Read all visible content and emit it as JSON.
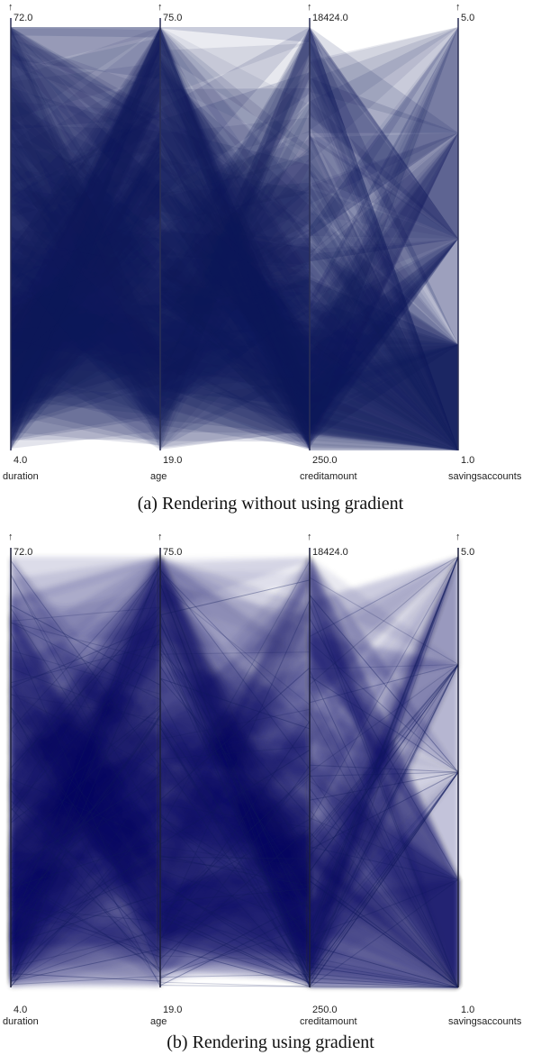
{
  "colors": {
    "line": "#101a5c",
    "axis_a": "#2a2f55",
    "axis_b": "#1c1f3a",
    "arrow": "#8a1a1a"
  },
  "chart_data": [
    {
      "type": "parallel-coordinates",
      "caption": "(a)  Rendering without using gradient",
      "gradient": false,
      "axes": [
        {
          "name": "duration",
          "min": 4.0,
          "max": 72.0,
          "min_label": "4.0",
          "max_label": "72.0"
        },
        {
          "name": "age",
          "min": 19.0,
          "max": 75.0,
          "min_label": "19.0",
          "max_label": "75.0"
        },
        {
          "name": "creditamount",
          "min": 250.0,
          "max": 18424.0,
          "min_label": "250.0",
          "max_label": "18424.0"
        },
        {
          "name": "savingsaccounts",
          "min": 1.0,
          "max": 5.0,
          "min_label": "1.0",
          "max_label": "5.0"
        }
      ]
    },
    {
      "type": "parallel-coordinates",
      "caption": "(b)  Rendering using gradient",
      "gradient": true,
      "axes": [
        {
          "name": "duration",
          "min": 4.0,
          "max": 72.0,
          "min_label": "4.0",
          "max_label": "72.0"
        },
        {
          "name": "age",
          "min": 19.0,
          "max": 75.0,
          "min_label": "19.0",
          "max_label": "75.0"
        },
        {
          "name": "creditamount",
          "min": 250.0,
          "max": 18424.0,
          "min_label": "250.0",
          "max_label": "18424.0"
        },
        {
          "name": "savingsaccounts",
          "min": 1.0,
          "max": 5.0,
          "min_label": "1.0",
          "max_label": "5.0"
        }
      ]
    }
  ]
}
